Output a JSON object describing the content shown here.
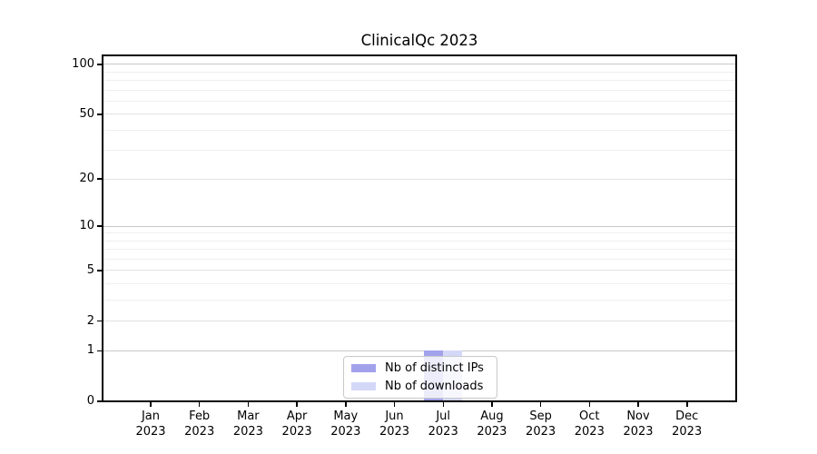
{
  "chart_data": {
    "type": "bar",
    "title": "ClinicalQc 2023",
    "categories": [
      [
        "Jan",
        "2023"
      ],
      [
        "Feb",
        "2023"
      ],
      [
        "Mar",
        "2023"
      ],
      [
        "Apr",
        "2023"
      ],
      [
        "May",
        "2023"
      ],
      [
        "Jun",
        "2023"
      ],
      [
        "Jul",
        "2023"
      ],
      [
        "Aug",
        "2023"
      ],
      [
        "Sep",
        "2023"
      ],
      [
        "Oct",
        "2023"
      ],
      [
        "Nov",
        "2023"
      ],
      [
        "Dec",
        "2023"
      ]
    ],
    "series": [
      {
        "name": "Nb of distinct IPs",
        "color": "#a2a2ec",
        "values": [
          0,
          0,
          0,
          0,
          0,
          0,
          1,
          0,
          0,
          0,
          0,
          0
        ]
      },
      {
        "name": "Nb of downloads",
        "color": "#d4d8f8",
        "values": [
          0,
          0,
          0,
          0,
          0,
          0,
          1,
          0,
          0,
          0,
          0,
          0
        ]
      }
    ],
    "xlabel": "",
    "ylabel": "",
    "yscale": "log1p",
    "ylim": [
      0,
      113
    ],
    "yticks": [
      0,
      1,
      2,
      5,
      10,
      20,
      50,
      100
    ],
    "major_gridlines": [
      1,
      10,
      100
    ],
    "mid_gridlines": [
      2,
      5,
      20,
      50
    ],
    "minor_gridlines": [
      3,
      4,
      6,
      7,
      8,
      9,
      30,
      40,
      60,
      70,
      80,
      90
    ],
    "grid": true,
    "legend_position": "lower center",
    "colors": {
      "grid_major": "#c8c8c8",
      "grid_mid": "#e2e2e2",
      "grid_minor": "#efefef",
      "spine": "#000000",
      "text": "#000000",
      "background": "#ffffff"
    }
  }
}
